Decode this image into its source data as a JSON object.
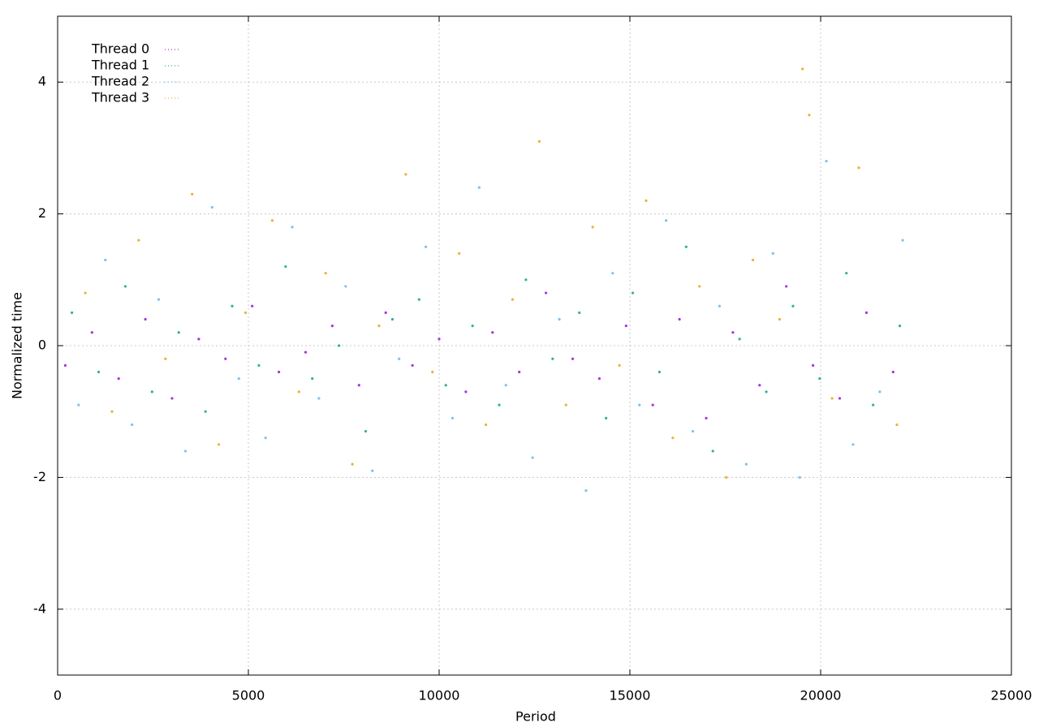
{
  "chart_data": {
    "type": "scatter",
    "xlabel": "Period",
    "ylabel": "Normalized time",
    "xlim": [
      0,
      25000
    ],
    "xticks": [
      0,
      5000,
      10000,
      15000,
      20000,
      25000
    ],
    "ylim": [
      -5,
      5
    ],
    "yticks": [
      -4,
      -2,
      0,
      2,
      4
    ],
    "grid": true,
    "legend": "top-left",
    "series": [
      {
        "name": "Thread 0",
        "color": "#9400d3",
        "x": [
          200,
          900,
          1600,
          2300,
          3000,
          3700,
          4400,
          5100,
          5800,
          6500,
          7200,
          7900,
          8600,
          9300,
          10000,
          10700,
          11400,
          12100,
          12800,
          13500,
          14200,
          14900,
          15600,
          16300,
          17000,
          17700,
          18400,
          19100,
          19800,
          20500,
          21200,
          21900
        ],
        "values": [
          -0.3,
          0.2,
          -0.5,
          0.4,
          -0.8,
          0.1,
          -0.2,
          0.6,
          -0.4,
          -0.1,
          0.3,
          -0.6,
          0.5,
          -0.3,
          0.1,
          -0.7,
          0.2,
          -0.4,
          0.8,
          -0.2,
          -0.5,
          0.3,
          -0.9,
          0.4,
          -1.1,
          0.2,
          -0.6,
          0.9,
          -0.3,
          -0.8,
          0.5,
          -0.4
        ]
      },
      {
        "name": "Thread 1",
        "color": "#009e73",
        "x": [
          375,
          1075,
          1775,
          2475,
          3175,
          3875,
          4575,
          5275,
          5975,
          6675,
          7375,
          8075,
          8775,
          9475,
          10175,
          10875,
          11575,
          12275,
          12975,
          13675,
          14375,
          15075,
          15775,
          16475,
          17175,
          17875,
          18575,
          19275,
          19975,
          20675,
          21375,
          22075
        ],
        "values": [
          0.5,
          -0.4,
          0.9,
          -0.7,
          0.2,
          -1.0,
          0.6,
          -0.3,
          1.2,
          -0.5,
          0.0,
          -1.3,
          0.4,
          0.7,
          -0.6,
          0.3,
          -0.9,
          1.0,
          -0.2,
          0.5,
          -1.1,
          0.8,
          -0.4,
          1.5,
          -1.6,
          0.1,
          -0.7,
          0.6,
          -0.5,
          1.1,
          -0.9,
          0.3
        ]
      },
      {
        "name": "Thread 2",
        "color": "#56b4e9",
        "x": [
          550,
          1250,
          1950,
          2650,
          3350,
          4050,
          4750,
          5450,
          6150,
          6850,
          7550,
          8250,
          8950,
          9650,
          10350,
          11050,
          11750,
          12450,
          13150,
          13850,
          14550,
          15250,
          15950,
          16650,
          17350,
          18050,
          18750,
          19450,
          20150,
          20850,
          21550,
          22150
        ],
        "values": [
          -0.9,
          1.3,
          -1.2,
          0.7,
          -1.6,
          2.1,
          -0.5,
          -1.4,
          1.8,
          -0.8,
          0.9,
          -1.9,
          -0.2,
          1.5,
          -1.1,
          2.4,
          -0.6,
          -1.7,
          0.4,
          -2.2,
          1.1,
          -0.9,
          1.9,
          -1.3,
          0.6,
          -1.8,
          1.4,
          -2.0,
          2.8,
          -1.5,
          -0.7,
          1.6
        ]
      },
      {
        "name": "Thread 3",
        "color": "#e69f00",
        "x": [
          725,
          1425,
          2125,
          2825,
          3525,
          4225,
          4925,
          5625,
          6325,
          7025,
          7725,
          8425,
          9125,
          9825,
          10525,
          11225,
          11925,
          12625,
          13325,
          14025,
          14725,
          15425,
          16125,
          16825,
          17525,
          18225,
          18925,
          19525,
          19700,
          20300,
          21000,
          22000
        ],
        "values": [
          0.8,
          -1.0,
          1.6,
          -0.2,
          2.3,
          -1.5,
          0.5,
          1.9,
          -0.7,
          1.1,
          -1.8,
          0.3,
          2.6,
          -0.4,
          1.4,
          -1.2,
          0.7,
          3.1,
          -0.9,
          1.8,
          -0.3,
          2.2,
          -1.4,
          0.9,
          -2.0,
          1.3,
          0.4,
          4.2,
          3.5,
          -0.8,
          2.7,
          -1.2
        ]
      }
    ]
  }
}
